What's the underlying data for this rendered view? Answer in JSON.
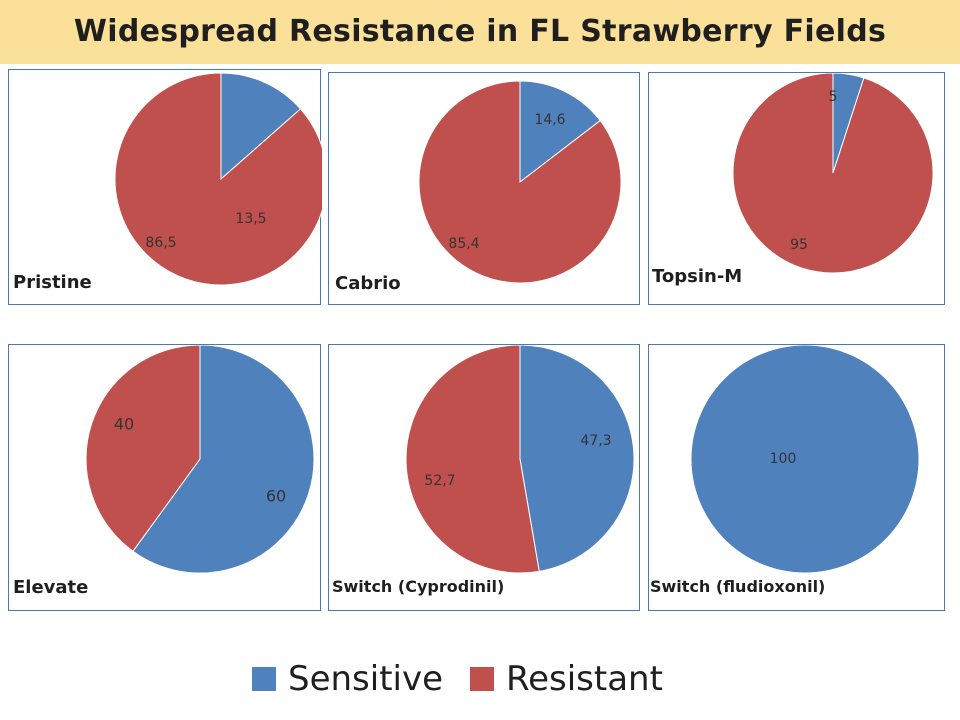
{
  "title": "Widespread Resistance in FL Strawberry Fields",
  "colors": {
    "sensitive": "#4f81bd",
    "resistant": "#c0504d",
    "border": "#4a7ab5",
    "title_bg": "#fbe09a"
  },
  "legend": [
    {
      "name": "Sensitive",
      "color": "#4f81bd"
    },
    {
      "name": "Resistant",
      "color": "#c0504d"
    }
  ],
  "chart_data": [
    {
      "type": "pie",
      "title": "Pristine",
      "series": [
        {
          "name": "Sensitive",
          "value": 13.5,
          "label": "13,5"
        },
        {
          "name": "Resistant",
          "value": 86.5,
          "label": "86,5"
        }
      ]
    },
    {
      "type": "pie",
      "title": "Cabrio",
      "series": [
        {
          "name": "Sensitive",
          "value": 14.6,
          "label": "14,6"
        },
        {
          "name": "Resistant",
          "value": 85.4,
          "label": "85,4"
        }
      ]
    },
    {
      "type": "pie",
      "title": "Topsin-M",
      "series": [
        {
          "name": "Sensitive",
          "value": 5,
          "label": "5"
        },
        {
          "name": "Resistant",
          "value": 95,
          "label": "95"
        }
      ]
    },
    {
      "type": "pie",
      "title": "Elevate",
      "series": [
        {
          "name": "Sensitive",
          "value": 60,
          "label": "60"
        },
        {
          "name": "Resistant",
          "value": 40,
          "label": "40"
        }
      ]
    },
    {
      "type": "pie",
      "title": "Switch (Cyprodinil)",
      "series": [
        {
          "name": "Sensitive",
          "value": 47.3,
          "label": "47,3"
        },
        {
          "name": "Resistant",
          "value": 52.7,
          "label": "52,7"
        }
      ]
    },
    {
      "type": "pie",
      "title": "Switch (fludioxonil)",
      "series": [
        {
          "name": "Sensitive",
          "value": 100,
          "label": "100"
        },
        {
          "name": "Resistant",
          "value": 0,
          "label": ""
        }
      ]
    }
  ]
}
